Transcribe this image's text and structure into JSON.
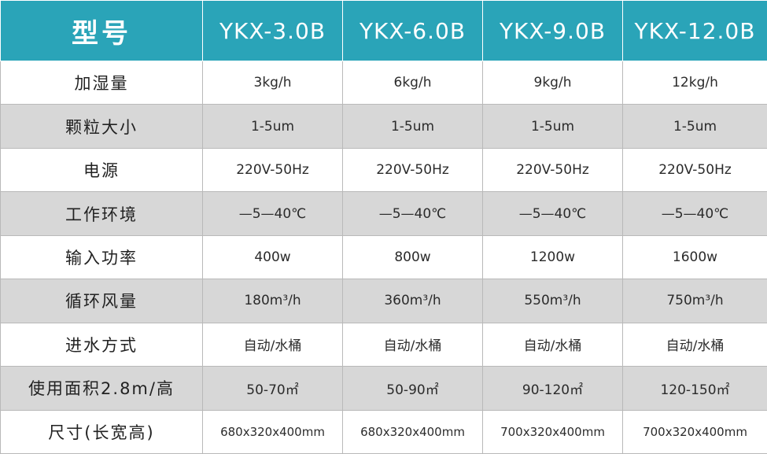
{
  "table": {
    "header": {
      "label": "型号",
      "models": [
        "YKX-3.0B",
        "YKX-6.0B",
        "YKX-9.0B",
        "YKX-12.0B"
      ]
    },
    "rows": [
      {
        "label": "加湿量",
        "values": [
          "3kg/h",
          "6kg/h",
          "9kg/h",
          "12kg/h"
        ]
      },
      {
        "label": "颗粒大小",
        "values": [
          "1-5um",
          "1-5um",
          "1-5um",
          "1-5um"
        ]
      },
      {
        "label": "电源",
        "values": [
          "220V-50Hz",
          "220V-50Hz",
          "220V-50Hz",
          "220V-50Hz"
        ]
      },
      {
        "label": "工作环境",
        "values": [
          "—5—40℃",
          "—5—40℃",
          "—5—40℃",
          "—5—40℃"
        ]
      },
      {
        "label": "输入功率",
        "values": [
          "400w",
          "800w",
          "1200w",
          "1600w"
        ]
      },
      {
        "label": "循环风量",
        "values": [
          "180m³/h",
          "360m³/h",
          "550m³/h",
          "750m³/h"
        ]
      },
      {
        "label": "进水方式",
        "values": [
          "自动/水桶",
          "自动/水桶",
          "自动/水桶",
          "自动/水桶"
        ]
      },
      {
        "label": "使用面积2.8m/高",
        "values": [
          "50-70㎡",
          "50-90㎡",
          "90-120㎡",
          "120-150㎡"
        ]
      },
      {
        "label": "尺寸(长宽高)",
        "values": [
          "680x320x400mm",
          "680x320x400mm",
          "700x320x400mm",
          "700x320x400mm"
        ]
      }
    ],
    "colors": {
      "header_bg": "#2aa4b8",
      "header_text": "#ffffff",
      "shaded_row": "#d7d7d7",
      "plain_row": "#ffffff",
      "border": "#b9b9b9"
    }
  }
}
